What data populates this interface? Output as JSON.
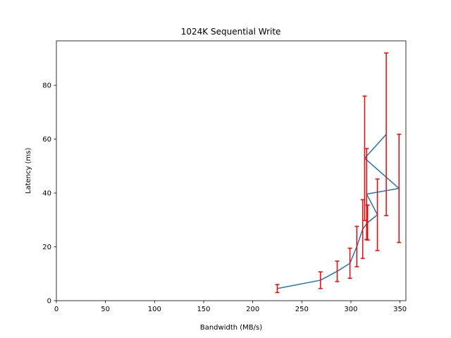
{
  "chart_data": {
    "type": "line",
    "title": "1024K  Sequential Write",
    "xlabel": "Bandwidth (MB/s)",
    "ylabel": "Latency (ms)",
    "xlim": [
      0,
      356
    ],
    "ylim": [
      0,
      96.5
    ],
    "xticks": [
      0,
      50,
      100,
      150,
      200,
      250,
      300,
      350
    ],
    "yticks": [
      0,
      20,
      40,
      60,
      80
    ],
    "grid": false,
    "line_color": "#1f77b4",
    "errorbar_color": "#ff0000",
    "series": [
      {
        "points": [
          {
            "x": 225,
            "y": 4.5,
            "err": 1.5
          },
          {
            "x": 269,
            "y": 7.6,
            "err": 3.1
          },
          {
            "x": 286,
            "y": 10.9,
            "err": 3.8
          },
          {
            "x": 299,
            "y": 13.9,
            "err": 5.6
          },
          {
            "x": 306,
            "y": 20.1,
            "err": 7.5
          },
          {
            "x": 312,
            "y": 26.6,
            "err": 10.9
          },
          {
            "x": 317,
            "y": 29.0,
            "err": 6.5
          },
          {
            "x": 327,
            "y": 31.9,
            "err": 13.3
          },
          {
            "x": 316,
            "y": 39.6,
            "err": 16.9
          },
          {
            "x": 349,
            "y": 41.7,
            "err": 20.1
          },
          {
            "x": 314,
            "y": 52.9,
            "err": 23.1
          },
          {
            "x": 336,
            "y": 61.8,
            "err": 30.2
          }
        ]
      }
    ]
  }
}
